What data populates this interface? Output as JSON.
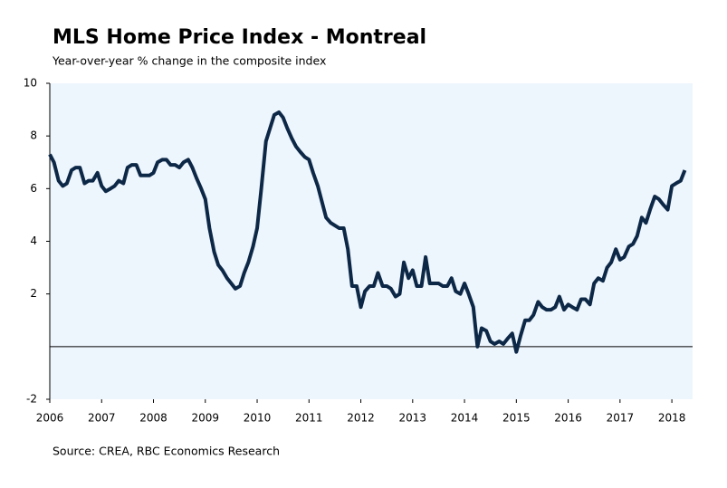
{
  "chart_data": {
    "type": "line",
    "title": "MLS Home Price Index - Montreal",
    "subtitle": "Year-over-year % change in the composite index",
    "source": "Source: CREA, RBC Economics Research",
    "x": [
      2006,
      2006.08,
      2006.17,
      2006.25,
      2006.33,
      2006.42,
      2006.5,
      2006.58,
      2006.67,
      2006.75,
      2006.83,
      2006.92,
      2007,
      2007.08,
      2007.17,
      2007.25,
      2007.33,
      2007.42,
      2007.5,
      2007.58,
      2007.67,
      2007.75,
      2007.83,
      2007.92,
      2008,
      2008.08,
      2008.17,
      2008.25,
      2008.33,
      2008.42,
      2008.5,
      2008.58,
      2008.67,
      2008.75,
      2008.83,
      2008.92,
      2009,
      2009.08,
      2009.17,
      2009.25,
      2009.33,
      2009.42,
      2009.5,
      2009.58,
      2009.67,
      2009.75,
      2009.83,
      2009.92,
      2010,
      2010.08,
      2010.17,
      2010.25,
      2010.33,
      2010.42,
      2010.5,
      2010.58,
      2010.67,
      2010.75,
      2010.83,
      2010.92,
      2011,
      2011.08,
      2011.17,
      2011.25,
      2011.33,
      2011.42,
      2011.5,
      2011.58,
      2011.67,
      2011.75,
      2011.83,
      2011.92,
      2012,
      2012.08,
      2012.17,
      2012.25,
      2012.33,
      2012.42,
      2012.5,
      2012.58,
      2012.67,
      2012.75,
      2012.83,
      2012.92,
      2013,
      2013.08,
      2013.17,
      2013.25,
      2013.33,
      2013.42,
      2013.5,
      2013.58,
      2013.67,
      2013.75,
      2013.83,
      2013.92,
      2014,
      2014.08,
      2014.17,
      2014.25,
      2014.33,
      2014.42,
      2014.5,
      2014.58,
      2014.67,
      2014.75,
      2014.83,
      2014.92,
      2015,
      2015.08,
      2015.17,
      2015.25,
      2015.33,
      2015.42,
      2015.5,
      2015.58,
      2015.67,
      2015.75,
      2015.83,
      2015.92,
      2016,
      2016.08,
      2016.17,
      2016.25,
      2016.33,
      2016.42,
      2016.5,
      2016.58,
      2016.67,
      2016.75,
      2016.83,
      2016.92,
      2017,
      2017.08,
      2017.17,
      2017.25,
      2017.33,
      2017.42,
      2017.5,
      2017.58,
      2017.67,
      2017.75,
      2017.83,
      2017.92,
      2018,
      2018.08,
      2018.17,
      2018.25
    ],
    "series": [
      {
        "color": "#0d2847",
        "values": [
          7.3,
          7.0,
          6.3,
          6.1,
          6.2,
          6.7,
          6.8,
          6.8,
          6.2,
          6.3,
          6.3,
          6.6,
          6.1,
          5.9,
          6.0,
          6.1,
          6.3,
          6.2,
          6.8,
          6.9,
          6.9,
          6.5,
          6.5,
          6.5,
          6.6,
          7.0,
          7.1,
          7.1,
          6.9,
          6.9,
          6.8,
          7.0,
          7.1,
          6.8,
          6.4,
          6.0,
          5.6,
          4.5,
          3.6,
          3.1,
          2.9,
          2.6,
          2.4,
          2.2,
          2.3,
          2.8,
          3.2,
          3.8,
          4.5,
          6.0,
          7.8,
          8.3,
          8.8,
          8.9,
          8.7,
          8.3,
          7.9,
          7.6,
          7.4,
          7.2,
          7.1,
          6.6,
          6.1,
          5.5,
          4.9,
          4.7,
          4.6,
          4.5,
          4.5,
          3.7,
          2.3,
          2.3,
          1.5,
          2.1,
          2.3,
          2.3,
          2.8,
          2.3,
          2.3,
          2.2,
          1.9,
          2.0,
          3.2,
          2.6,
          2.9,
          2.3,
          2.3,
          3.4,
          2.4,
          2.4,
          2.4,
          2.3,
          2.3,
          2.6,
          2.1,
          2.0,
          2.4,
          2.0,
          1.5,
          0.0,
          0.7,
          0.6,
          0.2,
          0.1,
          0.2,
          0.1,
          0.3,
          0.5,
          -0.2,
          0.4,
          1.0,
          1.0,
          1.2,
          1.7,
          1.5,
          1.4,
          1.4,
          1.5,
          1.9,
          1.4,
          1.6,
          1.5,
          1.4,
          1.8,
          1.8,
          1.6,
          2.4,
          2.6,
          2.5,
          3.0,
          3.2,
          3.7,
          3.3,
          3.4,
          3.8,
          3.9,
          4.2,
          4.9,
          4.7,
          5.2,
          5.7,
          5.6,
          5.4,
          5.2,
          6.1,
          6.2,
          6.3,
          6.7
        ]
      }
    ],
    "xlim": [
      2006,
      2018.4
    ],
    "xticks": [
      2006,
      2007,
      2008,
      2009,
      2010,
      2011,
      2012,
      2013,
      2014,
      2015,
      2016,
      2017,
      2018
    ],
    "ylim": [
      -2,
      10
    ],
    "yticks": [
      -2,
      2,
      4,
      6,
      8,
      10
    ],
    "plot_background": "#eef6fd"
  }
}
